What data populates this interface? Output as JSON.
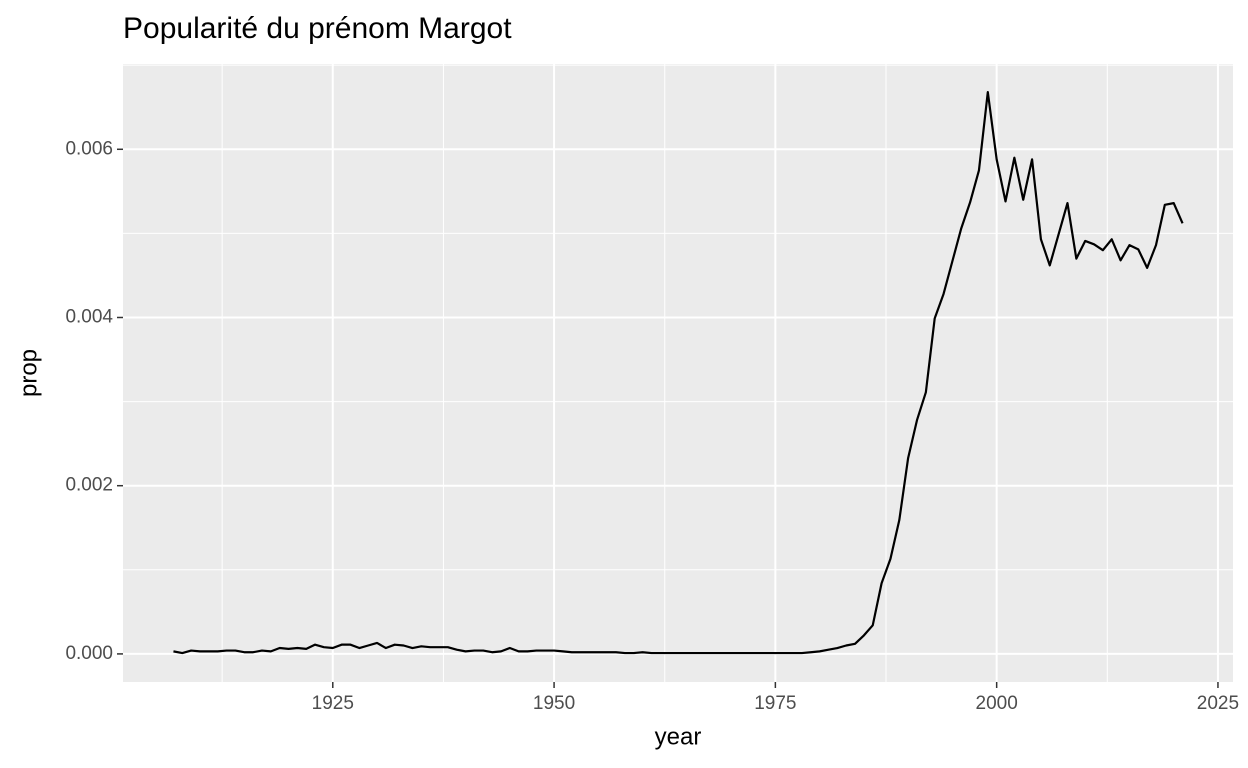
{
  "chart_data": {
    "type": "line",
    "title": "Popularité du prénom Margot",
    "x_label": "year",
    "y_label": "prop",
    "x": [
      1907,
      1908,
      1909,
      1910,
      1911,
      1912,
      1913,
      1914,
      1915,
      1916,
      1917,
      1918,
      1919,
      1920,
      1921,
      1922,
      1923,
      1924,
      1925,
      1926,
      1927,
      1928,
      1929,
      1930,
      1931,
      1932,
      1933,
      1934,
      1935,
      1936,
      1937,
      1938,
      1939,
      1940,
      1941,
      1942,
      1943,
      1944,
      1945,
      1946,
      1947,
      1948,
      1949,
      1950,
      1951,
      1952,
      1953,
      1954,
      1955,
      1956,
      1957,
      1958,
      1959,
      1960,
      1961,
      1962,
      1963,
      1964,
      1965,
      1966,
      1967,
      1968,
      1969,
      1970,
      1971,
      1972,
      1973,
      1974,
      1975,
      1976,
      1977,
      1978,
      1979,
      1980,
      1981,
      1982,
      1983,
      1984,
      1985,
      1986,
      1987,
      1988,
      1989,
      1990,
      1991,
      1992,
      1993,
      1994,
      1995,
      1996,
      1997,
      1998,
      1999,
      2000,
      2001,
      2002,
      2003,
      2004,
      2005,
      2006,
      2007,
      2008,
      2009,
      2010,
      2011,
      2012,
      2013,
      2014,
      2015,
      2016,
      2017,
      2018,
      2019,
      2020,
      2021
    ],
    "series": [
      {
        "name": "prop",
        "color": "#000000",
        "values": [
          3e-05,
          1e-05,
          4e-05,
          3e-05,
          3e-05,
          3e-05,
          4e-05,
          4e-05,
          2e-05,
          2e-05,
          4e-05,
          3e-05,
          7e-05,
          6e-05,
          7e-05,
          6e-05,
          0.00011,
          8e-05,
          7e-05,
          0.00011,
          0.00011,
          7e-05,
          0.0001,
          0.00013,
          7e-05,
          0.00011,
          0.0001,
          7e-05,
          9e-05,
          8e-05,
          8e-05,
          8e-05,
          5e-05,
          3e-05,
          4e-05,
          4e-05,
          2e-05,
          3e-05,
          7e-05,
          3e-05,
          3e-05,
          4e-05,
          4e-05,
          4e-05,
          3e-05,
          2e-05,
          2e-05,
          2e-05,
          2e-05,
          2e-05,
          2e-05,
          1e-05,
          1e-05,
          2e-05,
          1e-05,
          1e-05,
          1e-05,
          1e-05,
          1e-05,
          1e-05,
          1e-05,
          1e-05,
          1e-05,
          1e-05,
          1e-05,
          1e-05,
          1e-05,
          1e-05,
          1e-05,
          1e-05,
          1e-05,
          1e-05,
          2e-05,
          3e-05,
          5e-05,
          7e-05,
          0.0001,
          0.00012,
          0.00022,
          0.00034,
          0.00084,
          0.00113,
          0.00159,
          0.00233,
          0.00278,
          0.00311,
          0.00399,
          0.00428,
          0.00467,
          0.00506,
          0.00537,
          0.00575,
          0.00668,
          0.00588,
          0.00538,
          0.0059,
          0.0054,
          0.00588,
          0.00493,
          0.00462,
          0.00499,
          0.00536,
          0.0047,
          0.00491,
          0.00487,
          0.0048,
          0.00493,
          0.00468,
          0.00486,
          0.00481,
          0.00459,
          0.00486,
          0.00534,
          0.00536,
          0.00512
        ]
      }
    ],
    "xlim": [
      1901.3,
      2026.7
    ],
    "xticks": [
      1925,
      1950,
      1975,
      2000,
      2025
    ],
    "ylim": [
      -0.000334,
      0.007014
    ],
    "yticks": [
      {
        "value": 0,
        "label": "0.000"
      },
      {
        "value": 0.002,
        "label": "0.002"
      },
      {
        "value": 0.004,
        "label": "0.004"
      },
      {
        "value": 0.006,
        "label": "0.006"
      }
    ],
    "grid": true
  }
}
